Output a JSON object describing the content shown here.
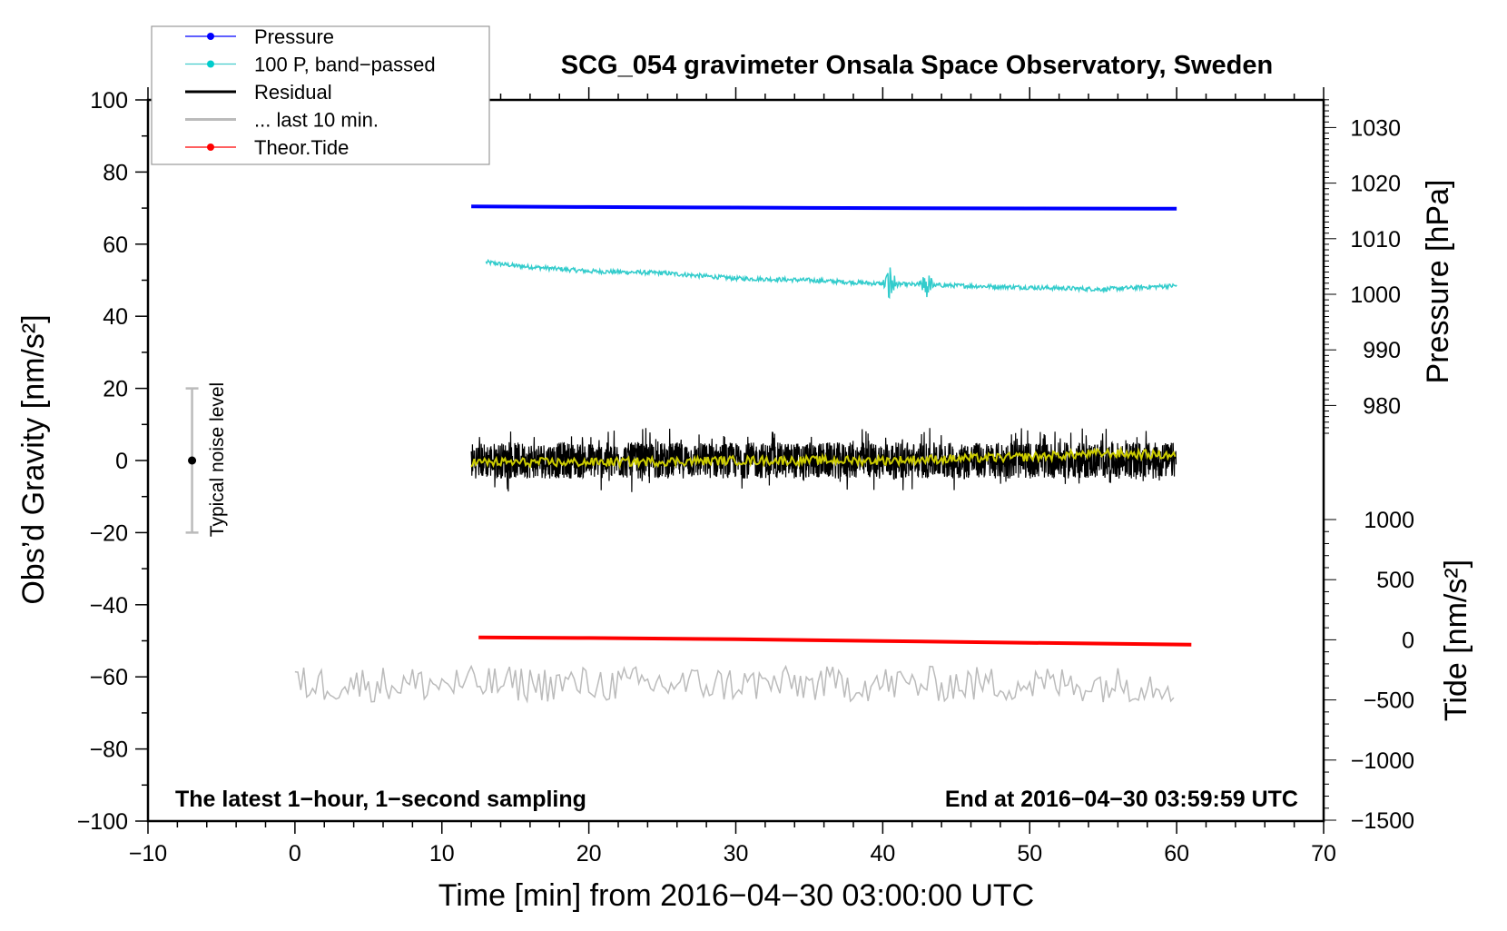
{
  "chart_data": {
    "type": "line",
    "title": "SCG_054 gravimeter Onsala Space Observatory, Sweden",
    "xlabel": "Time [min] from 2016−04−30 03:00:00 UTC",
    "ylabel": "Obs’d Gravity [nm/s²]",
    "y2label_pressure": "Pressure [hPa]",
    "y2label_tide": "Tide [nm/s²]",
    "xlim": [
      -10,
      70
    ],
    "ylim": [
      -100,
      100
    ],
    "pressure_lim": [
      973.5,
      1036.3
    ],
    "tide_lim": [
      -1500,
      1000
    ],
    "xticks": [
      -10,
      0,
      10,
      20,
      30,
      40,
      50,
      60,
      70
    ],
    "xtick_labels": [
      "−10",
      "0",
      "10",
      "20",
      "30",
      "40",
      "50",
      "60",
      "70"
    ],
    "yticks": [
      100,
      80,
      60,
      40,
      20,
      0,
      -20,
      -40,
      -60,
      -80,
      -100
    ],
    "ytick_labels": [
      "100",
      "80",
      "60",
      "40",
      "20",
      "0",
      "−20",
      "−40",
      "−60",
      "−80",
      "−100"
    ],
    "pressure_ticks": [
      1030,
      1020,
      1010,
      1000,
      990,
      980
    ],
    "pressure_tick_labels": [
      "1030",
      "1020",
      "1010",
      "1000",
      "990",
      "980"
    ],
    "tide_ticks": [
      1000,
      500,
      0,
      -500,
      -1000,
      -1500
    ],
    "tide_tick_labels": [
      "1000",
      "500",
      "0",
      "−500",
      "−1000",
      "−1500"
    ],
    "grid": false,
    "legend_placement": "top-left",
    "legend": [
      {
        "label": "Pressure",
        "color": "#0000ff",
        "marker": true
      },
      {
        "label": "100 P, band−passed",
        "color": "#00cccc",
        "marker": true
      },
      {
        "label": "Residual",
        "color": "#000000",
        "marker": false
      },
      {
        "label": "... last 10 min.",
        "color": "#bbbbbb",
        "marker": false
      },
      {
        "label": "Theor.Tide",
        "color": "#ff0000",
        "marker": true
      }
    ],
    "series": [
      {
        "name": "Pressure",
        "axis": "pressure",
        "color": "#0000ff",
        "x": [
          12,
          20,
          30,
          40,
          50,
          60
        ],
        "y": [
          1015.8,
          1015.7,
          1015.6,
          1015.5,
          1015.45,
          1015.4
        ]
      },
      {
        "name": "100 P, band-passed",
        "axis": "gravity",
        "color": "#33cccc",
        "x": [
          13,
          15,
          20,
          25,
          30,
          35,
          40,
          45,
          50,
          55,
          60
        ],
        "y": [
          55,
          54,
          52.5,
          52,
          50.5,
          50,
          49,
          48.5,
          48,
          47.5,
          48.5
        ],
        "noise_amplitude": 0.6,
        "bursts": [
          {
            "x": 40.5,
            "amplitude": 6
          },
          {
            "x": 43,
            "amplitude": 4
          }
        ]
      },
      {
        "name": "Residual",
        "axis": "gravity",
        "color": "#000000",
        "x": [
          12,
          60
        ],
        "y": [
          0,
          0
        ],
        "noise_amplitude": 5,
        "smoothed_color": "#cccc00",
        "smoothed": {
          "x": [
            12,
            20,
            30,
            40,
            50,
            55,
            60
          ],
          "y": [
            -0.5,
            -0.5,
            0,
            0,
            1,
            2,
            1.5
          ]
        }
      },
      {
        "name": "... last 10 min.",
        "axis": "gravity",
        "color": "#bbbbbb",
        "x": [
          0,
          60
        ],
        "y": [
          -62,
          -62
        ],
        "noise_amplitude": 5
      },
      {
        "name": "Theor.Tide",
        "axis": "tide",
        "color": "#ff0000",
        "x": [
          12.5,
          20,
          30,
          40,
          50,
          61
        ],
        "y": [
          20,
          15,
          5,
          -10,
          -25,
          -40
        ]
      }
    ],
    "noise_bar": {
      "label": "Typical noise level",
      "center": 0,
      "low": -20,
      "high": 20,
      "x": -7
    },
    "annotations": {
      "bottom_left": "The latest 1−hour, 1−second sampling",
      "bottom_right": "End at 2016−04−30 03:59:59 UTC"
    }
  }
}
